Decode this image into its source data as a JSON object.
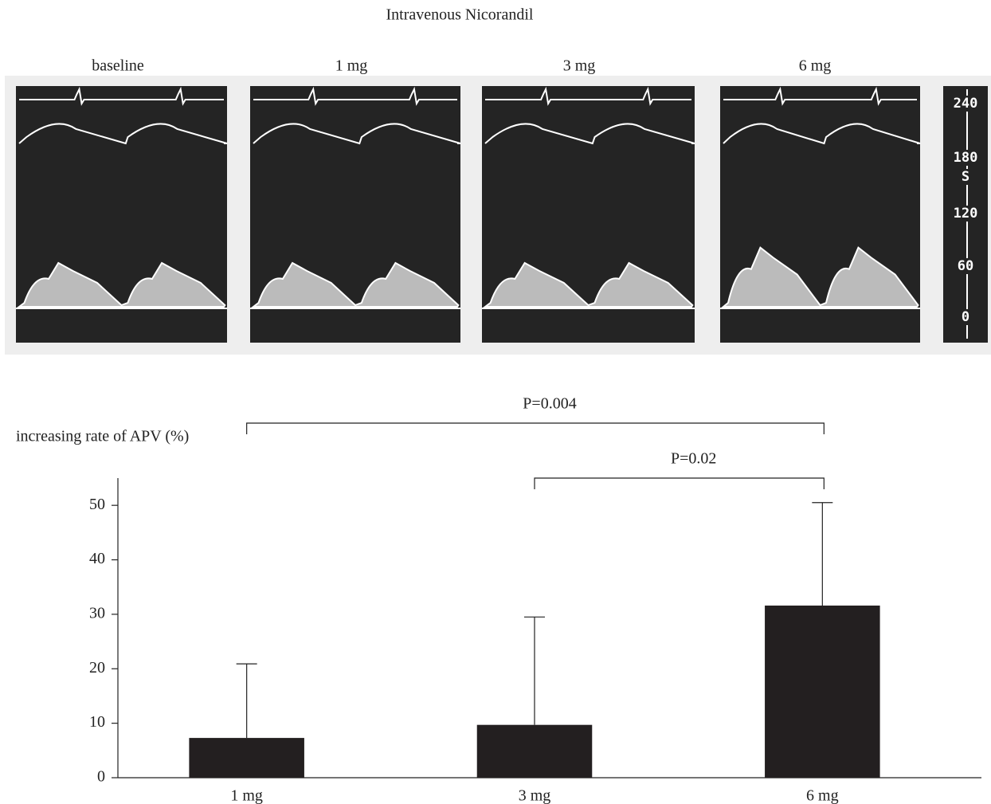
{
  "doppler": {
    "title": "Intravenous Nicorandil",
    "panels": [
      "baseline",
      "1 mg",
      "3 mg",
      "6 mg"
    ],
    "scale_labels": [
      "240",
      "180",
      "S",
      "120",
      "60",
      "0"
    ]
  },
  "chart_data": {
    "type": "bar",
    "y_label": "increasing rate of APV (%)",
    "categories": [
      "1 mg",
      "3 mg",
      "6 mg"
    ],
    "values": [
      7.3,
      9.7,
      31.6
    ],
    "errors": [
      13.6,
      19.8,
      18.9
    ],
    "color": "#231f20",
    "ylim": [
      0,
      55
    ],
    "yticks": [
      0,
      10,
      20,
      30,
      40,
      50
    ],
    "annotations": [
      {
        "text": "P=0.004",
        "categories": [
          "1 mg",
          "6 mg"
        ]
      },
      {
        "text": "P=0.02",
        "categories": [
          "3 mg",
          "6 mg"
        ]
      }
    ]
  }
}
